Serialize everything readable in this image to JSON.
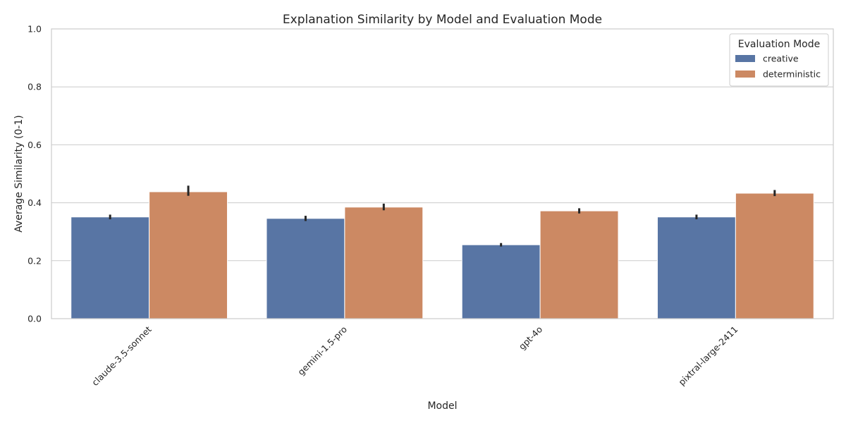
{
  "chart_data": {
    "type": "bar",
    "title": "Explanation Similarity by Model and Evaluation Mode",
    "xlabel": "Model",
    "ylabel": "Average Similarity (0-1)",
    "ylim": [
      0,
      1
    ],
    "yticks": [
      "0.0",
      "0.2",
      "0.4",
      "0.6",
      "0.8",
      "1.0"
    ],
    "grid": "horizontal",
    "legend": {
      "title": "Evaluation Mode",
      "position": "top-right"
    },
    "categories": [
      "claude-3.5-sonnet",
      "gemini-1.5-pro",
      "gpt-4o",
      "pixtral-large-2411"
    ],
    "series": [
      {
        "name": "creative",
        "color": "#5875a4",
        "values": [
          0.351,
          0.346,
          0.255,
          0.351
        ],
        "error": [
          [
            0.343,
            0.359
          ],
          [
            0.337,
            0.355
          ],
          [
            0.249,
            0.261
          ],
          [
            0.343,
            0.359
          ]
        ]
      },
      {
        "name": "deterministic",
        "color": "#cc8963",
        "values": [
          0.438,
          0.385,
          0.372,
          0.433
        ],
        "error": [
          [
            0.424,
            0.459
          ],
          [
            0.374,
            0.397
          ],
          [
            0.363,
            0.381
          ],
          [
            0.423,
            0.444
          ]
        ]
      }
    ]
  }
}
